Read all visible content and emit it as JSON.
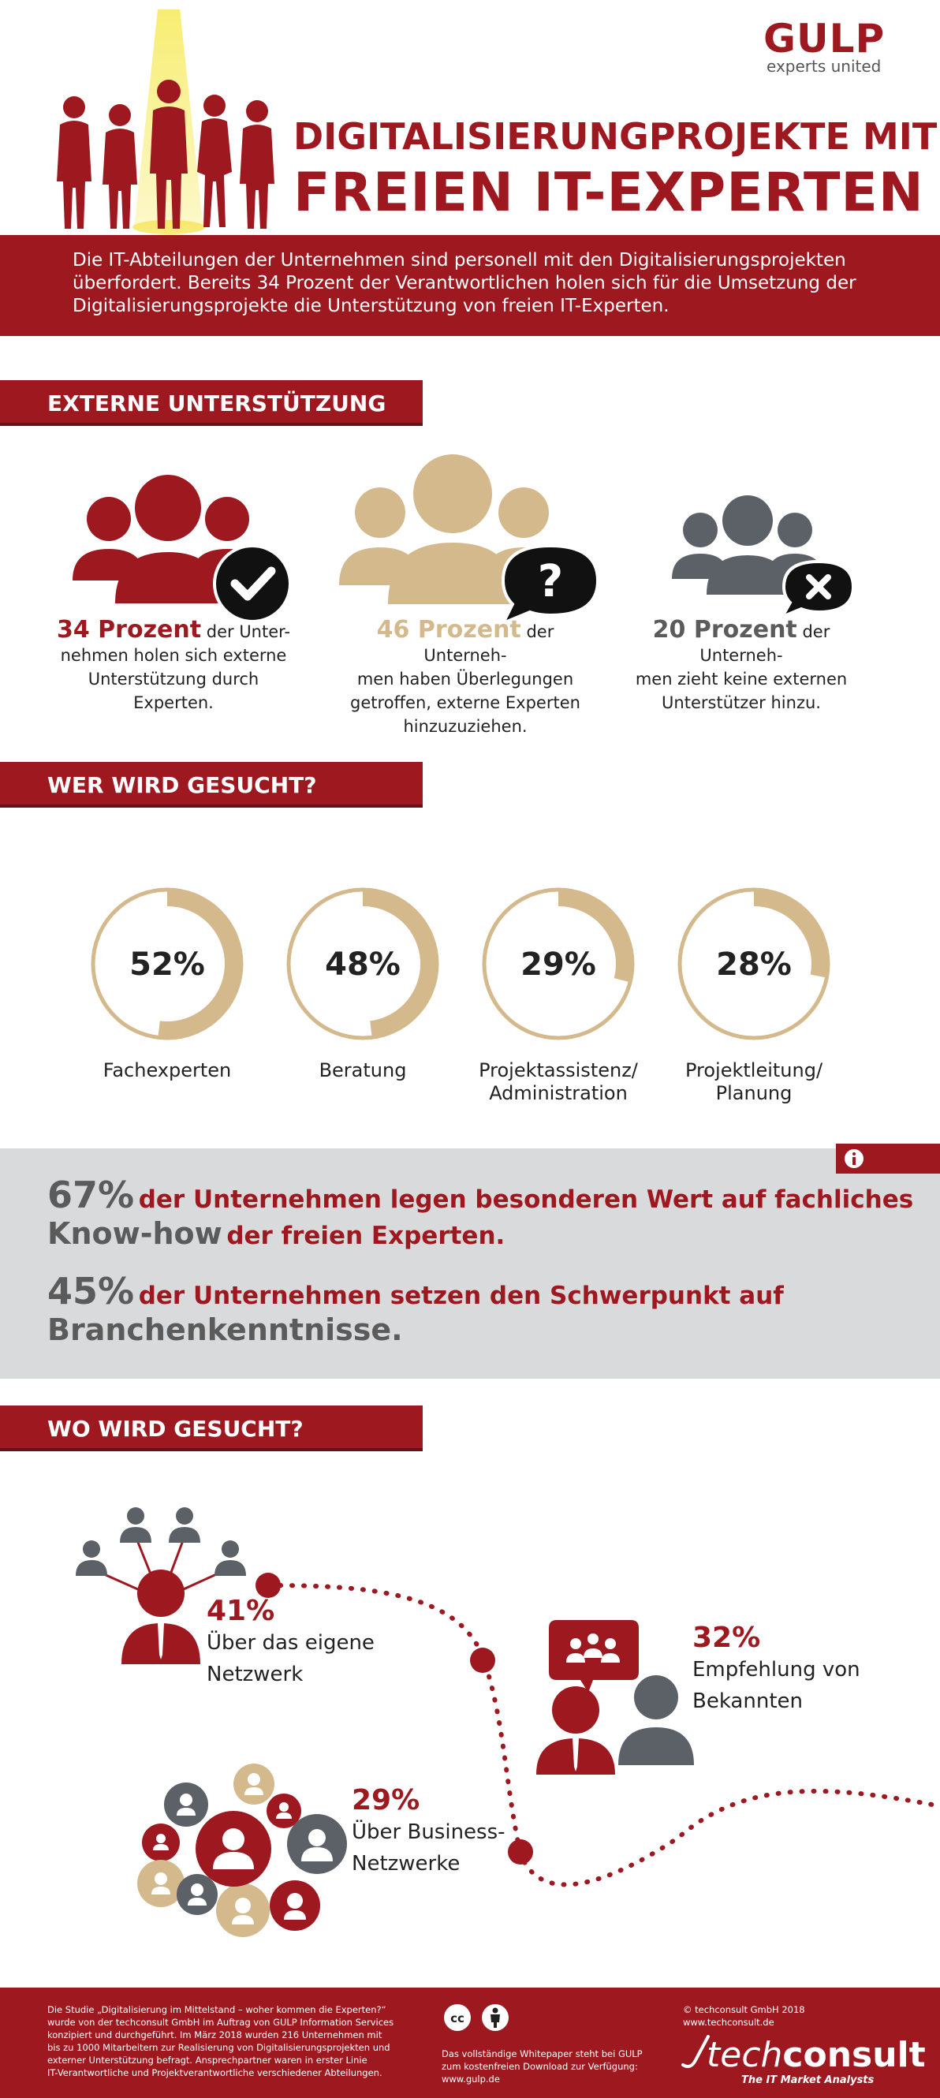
{
  "header": {
    "brand": "GULP",
    "brand_sub": "experts united",
    "title_line1": "DIGITALISIERUNGPROJEKTE MIT",
    "title_line2": "FREIEN IT-EXPERTEN",
    "intro": "Die IT-Abteilungen der Unternehmen sind personell mit den Digitalisierungsprojekten überfordert. Bereits 34 Prozent der Verantwortlichen holen sich für die Umsetzung der Digitalisierungsprojekte die Unterstützung von freien IT-Experten."
  },
  "colors": {
    "accent": "#9e1820",
    "gold": "#d4b98c",
    "slate": "#5c6167",
    "band": "#d9dadb"
  },
  "section1": {
    "heading": "EXTERNE UNTERSTÜTZUNG",
    "stats": [
      {
        "value": "34 Prozent",
        "text_a": " der Unter-",
        "text_b": "nehmen holen sich externe",
        "text_c": "Unterstützung durch Experten.",
        "text_d": "",
        "icon": "checkmark-icon"
      },
      {
        "value": "46 Prozent",
        "text_a": " der Unterneh-",
        "text_b": "men haben Überlegungen",
        "text_c": "getroffen, externe Experten",
        "text_d": "hinzuzuziehen.",
        "icon": "question-icon"
      },
      {
        "value": "20 Prozent",
        "text_a": " der Unterneh-",
        "text_b": "men zieht keine externen",
        "text_c": "Unterstützer hinzu.",
        "text_d": "",
        "icon": "x-icon"
      }
    ]
  },
  "section2": {
    "heading": "WER WIRD GESUCHT?",
    "donuts": [
      {
        "percent": 52,
        "value": "52%",
        "label_a": "Fachexperten",
        "label_b": ""
      },
      {
        "percent": 48,
        "value": "48%",
        "label_a": "Beratung",
        "label_b": ""
      },
      {
        "percent": 29,
        "value": "29%",
        "label_a": "Projektassistenz/",
        "label_b": "Administration"
      },
      {
        "percent": 28,
        "value": "28%",
        "label_a": "Projektleitung/",
        "label_b": "Planung"
      }
    ]
  },
  "info": {
    "line1_pct": "67%",
    "line1_rest": "der Unternehmen legen besonderen Wert auf fachliches",
    "line2_bold": "Know-how",
    "line2_rest": "der freien Experten.",
    "line3_pct": "45%",
    "line3_rest": "der Unternehmen setzen den Schwerpunkt auf",
    "line4_bold": "Branchenkenntnisse."
  },
  "section3": {
    "heading": "WO WIRD GESUCHT?",
    "items": [
      {
        "value": "41%",
        "label_a": "Über das eigene",
        "label_b": "Netzwerk"
      },
      {
        "value": "32%",
        "label_a": "Empfehlung von",
        "label_b": "Bekannten"
      },
      {
        "value": "29%",
        "label_a": "Über Business-",
        "label_b": "Netzwerke"
      }
    ]
  },
  "footer": {
    "study_lines": [
      "Die Studie „Digitalisierung im Mittelstand – woher kommen die Experten?“",
      "wurde von der techconsult GmbH im Auftrag von GULP Information Services",
      "konzipiert und durchgeführt. Im März 2018 wurden 216 Unternehmen mit",
      "bis zu 1000 Mitarbeitern zur Realisierung von Digitalisierungsprojekten und",
      "externer Unterstützung befragt. Ansprechpartner waren in erster Linie",
      "IT-Verantwortliche und Projektverantwortliche verschiedener Abteilungen."
    ],
    "download_lines": [
      "Das vollständige Whitepaper steht bei GULP",
      "zum kostenfreien Download zur Verfügung:",
      "www.gulp.de"
    ],
    "copyright": "© techconsult GmbH 2018",
    "website": "www.techconsult.de",
    "tc_logo_a": "tech",
    "tc_logo_b": "consult",
    "tc_tagline": "The IT Market Analysts"
  }
}
